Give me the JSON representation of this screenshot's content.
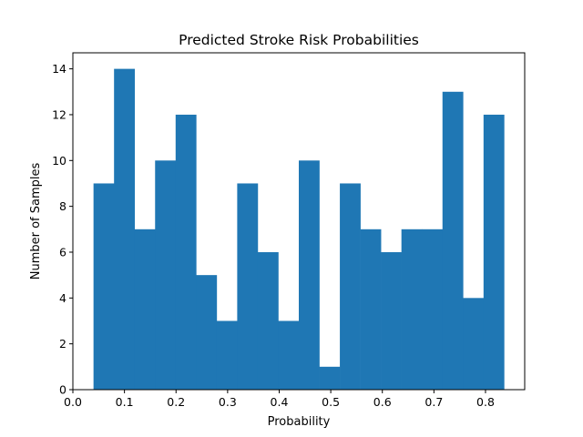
{
  "chart_data": {
    "type": "bar",
    "title": "Predicted Stroke Risk Probabilities",
    "xlabel": "Probability",
    "ylabel": "Number of Samples",
    "bin_edges": [
      0.04,
      0.0798,
      0.1196,
      0.1594,
      0.1992,
      0.239,
      0.2788,
      0.3186,
      0.3584,
      0.3982,
      0.438,
      0.4778,
      0.5176,
      0.5574,
      0.5972,
      0.637,
      0.6768,
      0.7166,
      0.7564,
      0.7962,
      0.836
    ],
    "values": [
      9,
      14,
      7,
      10,
      12,
      5,
      3,
      9,
      6,
      3,
      10,
      1,
      9,
      7,
      6,
      7,
      7,
      13,
      4,
      12
    ],
    "xlim": [
      0.0,
      0.876
    ],
    "ylim": [
      0,
      14.7
    ],
    "x_ticks": [
      {
        "value": 0.0,
        "label": "0.0"
      },
      {
        "value": 0.1,
        "label": "0.1"
      },
      {
        "value": 0.2,
        "label": "0.2"
      },
      {
        "value": 0.3,
        "label": "0.3"
      },
      {
        "value": 0.4,
        "label": "0.4"
      },
      {
        "value": 0.5,
        "label": "0.5"
      },
      {
        "value": 0.6,
        "label": "0.6"
      },
      {
        "value": 0.7,
        "label": "0.7"
      },
      {
        "value": 0.8,
        "label": "0.8"
      }
    ],
    "y_ticks": [
      {
        "value": 0,
        "label": "0"
      },
      {
        "value": 2,
        "label": "2"
      },
      {
        "value": 4,
        "label": "4"
      },
      {
        "value": 6,
        "label": "6"
      },
      {
        "value": 8,
        "label": "8"
      },
      {
        "value": 10,
        "label": "10"
      },
      {
        "value": 12,
        "label": "12"
      },
      {
        "value": 14,
        "label": "14"
      }
    ],
    "bar_color": "#1f77b4",
    "grid": false,
    "legend": "none"
  }
}
